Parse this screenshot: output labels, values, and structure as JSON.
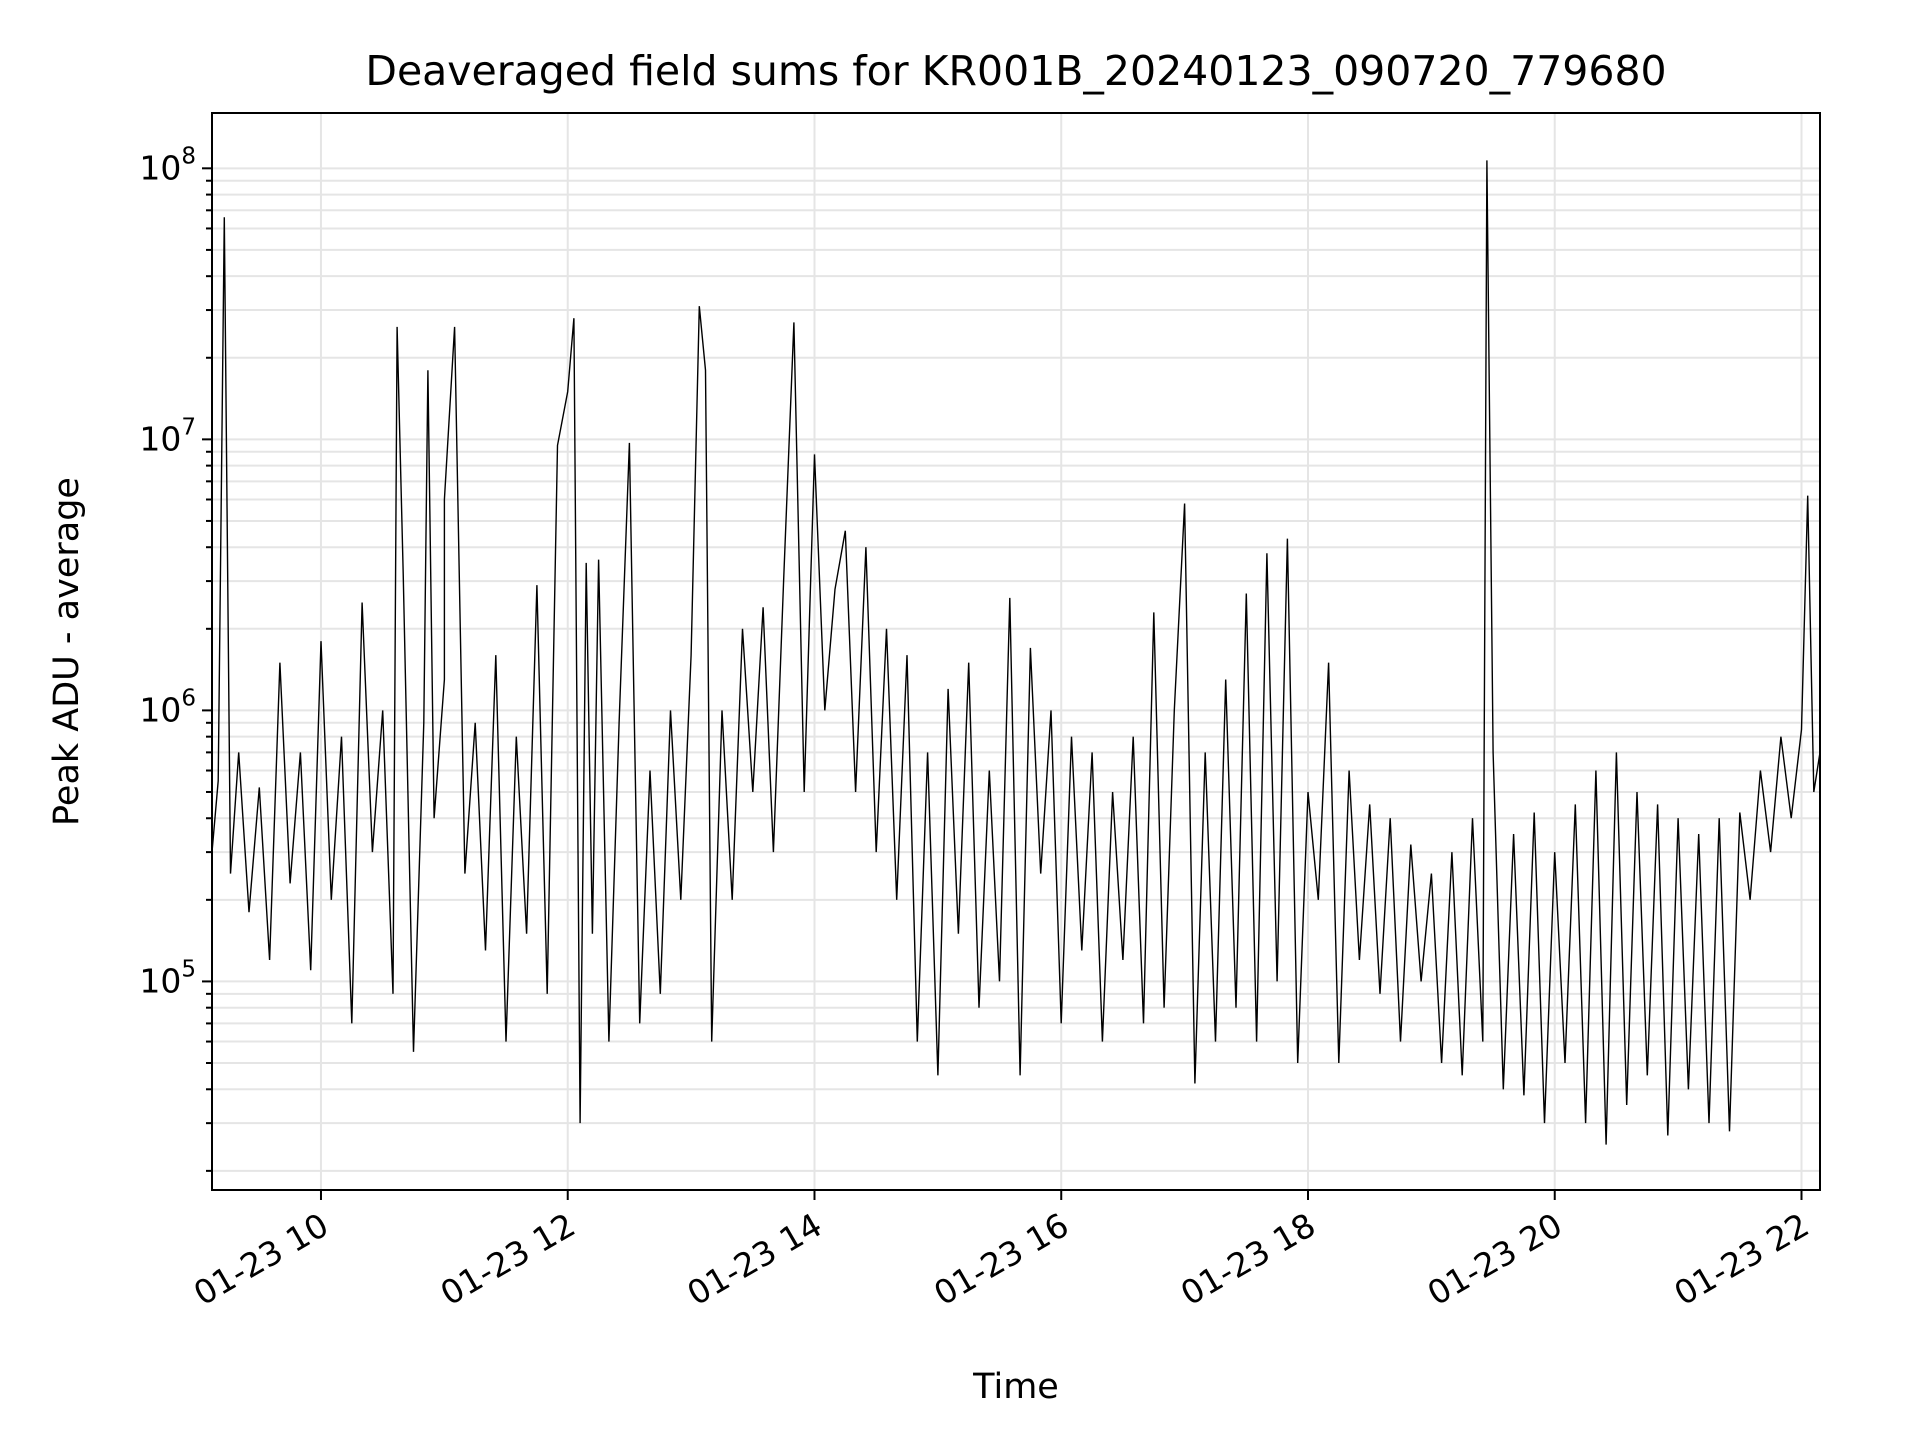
{
  "chart_data": {
    "type": "line",
    "title": "Deaveraged field sums for KR001B_20240123_090720_779680",
    "xlabel": "Time",
    "ylabel": "Peak ADU - average",
    "yscale": "log",
    "ylim": [
      17000,
      160000000
    ],
    "xlim": [
      "01-23 09:07",
      "01-23 22:09"
    ],
    "x_tick_labels": [
      "01-23 10",
      "01-23 12",
      "01-23 14",
      "01-23 16",
      "01-23 18",
      "01-23 20",
      "01-23 22"
    ],
    "y_ticks": [
      {
        "base": "10",
        "exp": "5",
        "value": 100000
      },
      {
        "base": "10",
        "exp": "6",
        "value": 1000000
      },
      {
        "base": "10",
        "exp": "7",
        "value": 10000000
      },
      {
        "base": "10",
        "exp": "8",
        "value": 100000000
      }
    ],
    "grid": true,
    "line_color": "#000000",
    "grid_color": "#e5e5e5",
    "series": [
      {
        "values_note": "",
        "points": [
          [
            "09:07",
            300000
          ],
          [
            "09:10",
            550000
          ],
          [
            "09:13",
            66000000
          ],
          [
            "09:16",
            250000
          ],
          [
            "09:20",
            700000
          ],
          [
            "09:25",
            180000
          ],
          [
            "09:30",
            520000
          ],
          [
            "09:35",
            120000
          ],
          [
            "09:40",
            1500000
          ],
          [
            "09:45",
            230000
          ],
          [
            "09:50",
            700000
          ],
          [
            "09:55",
            110000
          ],
          [
            "10:00",
            1800000
          ],
          [
            "10:05",
            200000
          ],
          [
            "10:10",
            800000
          ],
          [
            "10:15",
            70000
          ],
          [
            "10:20",
            2500000
          ],
          [
            "10:25",
            300000
          ],
          [
            "10:30",
            1000000
          ],
          [
            "10:35",
            90000
          ],
          [
            "10:40",
            3200000
          ],
          [
            "10:45",
            55000
          ],
          [
            "10:50",
            900000
          ],
          [
            "10:55",
            400000
          ],
          [
            "11:00",
            1300000
          ],
          [
            "10:37",
            26000000
          ],
          [
            "10:52",
            18000000
          ],
          [
            "11:00",
            6000000
          ],
          [
            "11:05",
            26000000
          ],
          [
            "11:10",
            250000
          ],
          [
            "11:15",
            900000
          ],
          [
            "11:20",
            130000
          ],
          [
            "11:25",
            1600000
          ],
          [
            "11:30",
            60000
          ],
          [
            "11:35",
            800000
          ],
          [
            "11:40",
            150000
          ],
          [
            "11:45",
            2900000
          ],
          [
            "11:50",
            90000
          ],
          [
            "11:55",
            9500000
          ],
          [
            "12:00",
            15000000
          ],
          [
            "12:03",
            28000000
          ],
          [
            "12:06",
            30000
          ],
          [
            "12:09",
            3500000
          ],
          [
            "12:12",
            150000
          ],
          [
            "12:15",
            3600000
          ],
          [
            "12:20",
            60000
          ],
          [
            "12:25",
            900000
          ],
          [
            "12:30",
            9700000
          ],
          [
            "12:35",
            70000
          ],
          [
            "12:40",
            600000
          ],
          [
            "12:45",
            90000
          ],
          [
            "12:50",
            1000000
          ],
          [
            "12:55",
            200000
          ],
          [
            "13:00",
            1600000
          ],
          [
            "13:04",
            31000000
          ],
          [
            "13:07",
            18000000
          ],
          [
            "13:10",
            60000
          ],
          [
            "13:15",
            1000000
          ],
          [
            "13:20",
            200000
          ],
          [
            "13:25",
            2000000
          ],
          [
            "13:30",
            500000
          ],
          [
            "13:35",
            2400000
          ],
          [
            "13:40",
            300000
          ],
          [
            "13:45",
            3000000
          ],
          [
            "13:50",
            27000000
          ],
          [
            "13:55",
            500000
          ],
          [
            "14:00",
            8800000
          ],
          [
            "14:05",
            1000000
          ],
          [
            "14:10",
            2800000
          ],
          [
            "14:15",
            4600000
          ],
          [
            "14:20",
            500000
          ],
          [
            "14:25",
            4000000
          ],
          [
            "14:30",
            300000
          ],
          [
            "14:35",
            2000000
          ],
          [
            "14:40",
            200000
          ],
          [
            "14:45",
            1600000
          ],
          [
            "14:50",
            60000
          ],
          [
            "14:55",
            700000
          ],
          [
            "15:00",
            45000
          ],
          [
            "15:05",
            1200000
          ],
          [
            "15:10",
            150000
          ],
          [
            "15:15",
            1500000
          ],
          [
            "15:20",
            80000
          ],
          [
            "15:25",
            600000
          ],
          [
            "15:30",
            100000
          ],
          [
            "15:35",
            2600000
          ],
          [
            "15:40",
            45000
          ],
          [
            "15:45",
            1700000
          ],
          [
            "15:50",
            250000
          ],
          [
            "15:55",
            1000000
          ],
          [
            "16:00",
            70000
          ],
          [
            "16:05",
            800000
          ],
          [
            "16:10",
            130000
          ],
          [
            "16:15",
            700000
          ],
          [
            "16:20",
            60000
          ],
          [
            "16:25",
            500000
          ],
          [
            "16:30",
            120000
          ],
          [
            "16:35",
            800000
          ],
          [
            "16:40",
            70000
          ],
          [
            "16:45",
            2300000
          ],
          [
            "16:50",
            80000
          ],
          [
            "16:55",
            1000000
          ],
          [
            "17:00",
            5800000
          ],
          [
            "17:05",
            42000
          ],
          [
            "17:10",
            700000
          ],
          [
            "17:15",
            60000
          ],
          [
            "17:20",
            1300000
          ],
          [
            "17:25",
            80000
          ],
          [
            "17:30",
            2700000
          ],
          [
            "17:35",
            60000
          ],
          [
            "17:40",
            3800000
          ],
          [
            "17:45",
            100000
          ],
          [
            "17:50",
            4300000
          ],
          [
            "17:55",
            50000
          ],
          [
            "18:00",
            500000
          ],
          [
            "18:05",
            200000
          ],
          [
            "18:10",
            1500000
          ],
          [
            "18:15",
            50000
          ],
          [
            "18:20",
            600000
          ],
          [
            "18:25",
            120000
          ],
          [
            "18:30",
            450000
          ],
          [
            "18:35",
            90000
          ],
          [
            "18:40",
            400000
          ],
          [
            "18:45",
            60000
          ],
          [
            "18:50",
            320000
          ],
          [
            "18:55",
            100000
          ],
          [
            "19:00",
            250000
          ],
          [
            "19:05",
            50000
          ],
          [
            "19:10",
            300000
          ],
          [
            "19:15",
            45000
          ],
          [
            "19:20",
            400000
          ],
          [
            "19:25",
            60000
          ],
          [
            "19:27",
            107000000
          ],
          [
            "19:30",
            700000
          ],
          [
            "19:35",
            40000
          ],
          [
            "19:40",
            350000
          ],
          [
            "19:45",
            38000
          ],
          [
            "19:50",
            420000
          ],
          [
            "19:55",
            30000
          ],
          [
            "20:00",
            300000
          ],
          [
            "20:05",
            50000
          ],
          [
            "20:10",
            450000
          ],
          [
            "20:15",
            30000
          ],
          [
            "20:20",
            600000
          ],
          [
            "20:25",
            25000
          ],
          [
            "20:30",
            700000
          ],
          [
            "20:35",
            35000
          ],
          [
            "20:40",
            500000
          ],
          [
            "20:45",
            45000
          ],
          [
            "20:50",
            450000
          ],
          [
            "20:55",
            27000
          ],
          [
            "21:00",
            400000
          ],
          [
            "21:05",
            40000
          ],
          [
            "21:10",
            350000
          ],
          [
            "21:15",
            30000
          ],
          [
            "21:20",
            400000
          ],
          [
            "21:25",
            28000
          ],
          [
            "21:30",
            420000
          ],
          [
            "21:35",
            200000
          ],
          [
            "21:40",
            600000
          ],
          [
            "21:45",
            300000
          ],
          [
            "21:50",
            800000
          ],
          [
            "21:55",
            400000
          ],
          [
            "22:00",
            850000
          ],
          [
            "22:03",
            6200000
          ],
          [
            "22:06",
            500000
          ],
          [
            "22:09",
            700000
          ]
        ]
      }
    ]
  }
}
